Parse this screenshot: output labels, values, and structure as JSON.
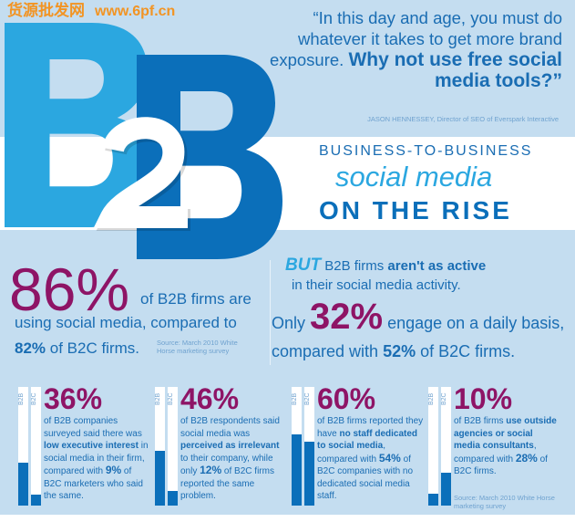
{
  "quote": {
    "text": "“In this day and age, you must do whatever it takes to get more brand exposure. ",
    "bold": "Why not use free social media tools?”",
    "attribution": "JASON HENNESSEY, Director of SEO of Everspark Interactive"
  },
  "logo": {
    "b1": "B",
    "two": "2",
    "b2": "B"
  },
  "title": {
    "line1": "BUSINESS-TO-BUSINESS",
    "line2": "social media",
    "line3": "ON THE RISE"
  },
  "stat_main": {
    "pct": "86%",
    "l1": "of B2B firms are",
    "l2": "using social media, compared to",
    "l3_bold": "82%",
    "l3": " of B2C firms.",
    "source": "Source: March 2010 White Horse marketing survey"
  },
  "stat_daily": {
    "but": "BUT",
    "t1": " B2B firms ",
    "t1b": "aren't as active",
    "t2": "in their social media activity.",
    "only": "Only ",
    "pct": "32%",
    "rest": " engage on a daily basis,",
    "comp": "compared with ",
    "comp_b": "52%",
    "comp_end": " of B2C firms."
  },
  "colors": {
    "light_blue": "#2ba7e0",
    "dark_blue": "#0b6fba",
    "magenta": "#8e1466",
    "panel": "#c4ddf0"
  },
  "cards": [
    {
      "b2b_label": "B2B",
      "b2c_label": "B2C",
      "b2b": 36,
      "b2c": 9,
      "pct": "36%",
      "a": "of B2B companies surveyed said there was ",
      "b": "low executive interest",
      "c": " in social media in their firm, compared with ",
      "d": "9%",
      "e": " of B2C marketers who said the same."
    },
    {
      "b2b_label": "B2B",
      "b2c_label": "B2C",
      "b2b": 46,
      "b2c": 12,
      "pct": "46%",
      "a": "of B2B respondents said social media was ",
      "b": "perceived as irrelevant",
      "c": " to their company, while only ",
      "d": "12%",
      "e": " of B2C firms reported the same problem."
    },
    {
      "b2b_label": "B2B",
      "b2c_label": "B2C",
      "b2b": 60,
      "b2c": 54,
      "pct": "60%",
      "a": "of B2B firms reported they have ",
      "b": "no staff dedicated to social media",
      "c": ", compared with ",
      "d": "54%",
      "e": " of B2C companies with no dedicated social media staff."
    },
    {
      "b2b_label": "B2B",
      "b2c_label": "B2C",
      "b2b": 10,
      "b2c": 28,
      "pct": "10%",
      "a": "of B2B firms ",
      "b": "use outside agencies or social media consultants",
      "c": ", compared with ",
      "d": "28%",
      "e": " of B2C firms."
    }
  ],
  "source_bottom": "Source: March 2010 White Horse marketing survey",
  "watermark": {
    "cn": "货源批发网",
    "url": "www.6pf.cn"
  }
}
